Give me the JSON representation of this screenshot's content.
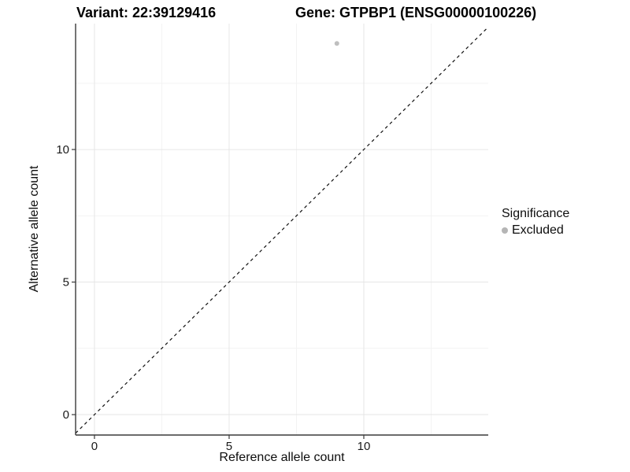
{
  "chart_data": {
    "type": "scatter",
    "titles": [
      "Variant: 22:39129416",
      "Gene: GTPBP1 (ENSG00000100226)"
    ],
    "xlabel": "Reference allele count",
    "ylabel": "Alternative allele count",
    "xlim": [
      -0.7,
      14.62
    ],
    "ylim": [
      -0.77,
      14.75
    ],
    "x_ticks": [
      0,
      5,
      10
    ],
    "y_ticks": [
      0,
      5,
      10
    ],
    "x_minor_ticks": [
      2.5,
      7.5,
      12.5
    ],
    "y_minor_ticks": [
      2.5,
      7.5,
      12.5
    ],
    "grid": "major+minor",
    "reference_line": {
      "type": "identity",
      "slope": 1,
      "intercept": 0,
      "style": "dashed",
      "color": "#111111"
    },
    "series": [
      {
        "name": "Excluded",
        "color": "#bfbfbf",
        "points": [
          {
            "x": 9,
            "y": 14
          }
        ]
      }
    ],
    "legend": {
      "title": "Significance",
      "position": "right",
      "items": [
        {
          "label": "Excluded",
          "color": "#b5b5b5"
        }
      ]
    },
    "colors": {
      "major_grid": "#e6e6e6",
      "minor_grid": "#f3f3f3",
      "axis_line": "#3a3a3a",
      "tick_text": "#1a1a1a",
      "background": "#ffffff"
    }
  }
}
